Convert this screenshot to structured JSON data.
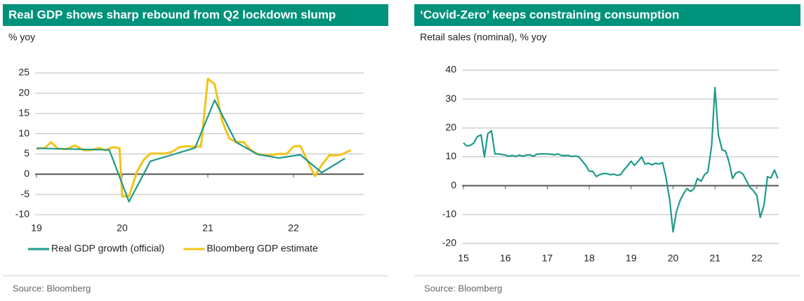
{
  "chart_data": [
    {
      "type": "line",
      "title": "Real GDP shows sharp rebound from Q2 lockdown slump",
      "subtitle": "% yoy",
      "source": "Source: Bloomberg",
      "xlim": [
        19,
        22.82
      ],
      "xticks": [
        19,
        20,
        21,
        22
      ],
      "ylim": [
        -10,
        25
      ],
      "yticks": [
        -10,
        -5,
        0,
        5,
        10,
        15,
        20,
        25
      ],
      "grid": true,
      "legend": "bottom",
      "series": [
        {
          "name": "Real GDP growth (official)",
          "color": "#1f9a8a",
          "x": [
            19.0,
            19.85,
            20.08,
            20.33,
            20.6,
            20.85,
            21.08,
            21.33,
            21.58,
            21.83,
            22.08,
            22.33,
            22.6
          ],
          "values": [
            6.4,
            6.0,
            -6.8,
            3.2,
            4.9,
            6.5,
            18.3,
            7.9,
            4.9,
            4.0,
            4.8,
            0.4,
            3.9
          ]
        },
        {
          "name": "Bloomberg GDP estimate",
          "color": "#f2c418",
          "x": [
            19.0,
            19.1,
            19.17,
            19.25,
            19.35,
            19.45,
            19.55,
            19.65,
            19.73,
            19.8,
            19.9,
            19.97,
            20.0,
            20.08,
            20.17,
            20.25,
            20.33,
            20.5,
            20.58,
            20.67,
            20.75,
            20.83,
            20.92,
            21.0,
            21.08,
            21.17,
            21.25,
            21.33,
            21.42,
            21.5,
            21.58,
            21.67,
            21.75,
            21.83,
            21.92,
            22.0,
            22.08,
            22.17,
            22.25,
            22.33,
            22.42,
            22.5,
            22.58,
            22.67
          ],
          "values": [
            6.3,
            6.5,
            7.9,
            6.3,
            6.2,
            7.1,
            5.9,
            6.0,
            6.5,
            5.9,
            6.7,
            6.4,
            -5.5,
            -5.5,
            0.5,
            3.5,
            5.1,
            5.1,
            5.5,
            6.7,
            6.9,
            6.8,
            6.8,
            23.6,
            22.2,
            13.0,
            8.8,
            8.0,
            7.9,
            6.0,
            5.0,
            4.7,
            4.8,
            5.0,
            5.0,
            6.8,
            7.0,
            3.0,
            -0.5,
            2.3,
            4.7,
            4.6,
            5.0,
            6.0
          ]
        }
      ]
    },
    {
      "type": "line",
      "title": "‘Covid-Zero’  keeps constraining consumption",
      "subtitle": "Retail sales (nominal), % yoy",
      "source": "Source: Bloomberg",
      "xlim": [
        15,
        22.52
      ],
      "xticks": [
        15,
        16,
        17,
        18,
        19,
        20,
        21,
        22
      ],
      "ylim": [
        -20,
        40
      ],
      "yticks": [
        -20,
        -10,
        0,
        10,
        20,
        30,
        40
      ],
      "grid": true,
      "series": [
        {
          "color": "#1f9a8a",
          "x": [
            15.0,
            15.08,
            15.17,
            15.25,
            15.33,
            15.42,
            15.5,
            15.58,
            15.67,
            15.75,
            15.83,
            15.92,
            16.0,
            16.08,
            16.17,
            16.25,
            16.33,
            16.42,
            16.5,
            16.58,
            16.67,
            16.75,
            16.83,
            16.92,
            17.0,
            17.08,
            17.17,
            17.25,
            17.33,
            17.42,
            17.5,
            17.58,
            17.67,
            17.75,
            17.83,
            17.92,
            18.0,
            18.08,
            18.17,
            18.25,
            18.33,
            18.42,
            18.5,
            18.58,
            18.67,
            18.75,
            18.83,
            18.92,
            19.0,
            19.08,
            19.17,
            19.25,
            19.33,
            19.42,
            19.5,
            19.58,
            19.67,
            19.75,
            19.83,
            19.92,
            20.0,
            20.08,
            20.17,
            20.25,
            20.33,
            20.42,
            20.5,
            20.58,
            20.67,
            20.75,
            20.83,
            20.92,
            21.0,
            21.08,
            21.17,
            21.25,
            21.33,
            21.42,
            21.5,
            21.58,
            21.67,
            21.75,
            21.83,
            21.92,
            22.0,
            22.08,
            22.17,
            22.25,
            22.33,
            22.42,
            22.5
          ],
          "values": [
            14.8,
            13.8,
            14.0,
            14.8,
            17.0,
            17.6,
            10.0,
            18.0,
            19.0,
            11.0,
            11.0,
            10.8,
            10.6,
            10.2,
            10.5,
            10.1,
            10.6,
            10.2,
            10.6,
            10.7,
            10.2,
            10.9,
            11.0,
            11.0,
            11.0,
            10.9,
            10.7,
            11.0,
            10.5,
            10.4,
            10.5,
            10.1,
            10.3,
            10.0,
            8.6,
            7.0,
            5.0,
            5.0,
            3.2,
            3.8,
            4.2,
            4.2,
            3.8,
            4.0,
            3.6,
            3.8,
            5.5,
            7.0,
            8.5,
            7.0,
            8.5,
            10.0,
            7.5,
            7.8,
            7.2,
            7.8,
            7.5,
            8.0,
            3.0,
            -5.0,
            -16.0,
            -9.0,
            -5.0,
            -2.8,
            -1.0,
            -2.0,
            -1.0,
            2.5,
            1.5,
            3.8,
            4.8,
            14.0,
            34.0,
            17.7,
            12.4,
            12.0,
            8.5,
            2.5,
            4.4,
            4.9,
            4.0,
            1.7,
            -0.5,
            -1.8,
            -3.5,
            -11.0,
            -6.7,
            3.1,
            2.7,
            5.4,
            2.5
          ]
        }
      ]
    }
  ]
}
